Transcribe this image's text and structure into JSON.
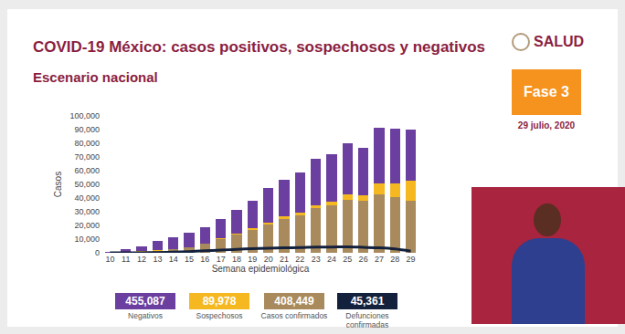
{
  "header": {
    "title": "COVID-19 México: casos positivos, sospechosos y negativos",
    "subtitle": "Escenario nacional",
    "logo": "SALUD",
    "phase": "Fase 3",
    "date": "29 julio, 2020"
  },
  "chart_data": {
    "type": "bar",
    "stacked": true,
    "grid": false,
    "x_label": "Semana epidemiológica",
    "y_label": "Casos",
    "categories": [
      "10",
      "11",
      "12",
      "13",
      "14",
      "15",
      "16",
      "17",
      "18",
      "19",
      "20",
      "21",
      "22",
      "23",
      "24",
      "25",
      "26",
      "27",
      "28",
      "29"
    ],
    "ylim": [
      0,
      100000
    ],
    "yticks": [
      0,
      {
        "value": 10000,
        "label": "10,000"
      },
      {
        "value": 20000,
        "label": "20,000"
      },
      {
        "value": 30000,
        "label": "30,000"
      },
      {
        "value": 40000,
        "label": "40,000"
      },
      {
        "value": 50000,
        "label": "50,000"
      },
      {
        "value": 60000,
        "label": "60,000"
      },
      {
        "value": 70000,
        "label": "70,000"
      },
      {
        "value": 80000,
        "label": "80,000"
      },
      {
        "value": 90000,
        "label": "90,000"
      },
      {
        "value": 100000,
        "label": "100,000"
      }
    ],
    "series": [
      {
        "name": "Negativos",
        "color": "#6b3fa0",
        "type": "bar",
        "total": 455087,
        "total_label": "455,087",
        "values": [
          800,
          2100,
          3800,
          7300,
          8700,
          10200,
          12100,
          14000,
          17400,
          20200,
          25500,
          27000,
          29000,
          33500,
          34500,
          37500,
          35000,
          41000,
          39500,
          37000
        ]
      },
      {
        "name": "Sospechosos",
        "color": "#f5b820",
        "type": "bar",
        "total": 89978,
        "total_label": "89,978",
        "values": [
          100,
          100,
          200,
          200,
          300,
          300,
          400,
          500,
          600,
          800,
          1000,
          1500,
          2000,
          2500,
          3000,
          3500,
          4000,
          7500,
          10000,
          15000
        ]
      },
      {
        "name": "Casos confirmados",
        "color": "#a88a5c",
        "type": "bar",
        "total": 408449,
        "total_label": "408,449",
        "values": [
          100,
          300,
          1000,
          1500,
          2500,
          4000,
          6500,
          10000,
          13500,
          17000,
          21000,
          25000,
          27500,
          32500,
          34500,
          39000,
          38000,
          43000,
          41000,
          38000
        ]
      },
      {
        "name": "Defunciones confirmadas",
        "color": "#14213d",
        "type": "line",
        "line_style": "solid",
        "total": 45361,
        "total_label": "45,361",
        "values": [
          0,
          10,
          50,
          200,
          500,
          900,
          1500,
          2000,
          2500,
          3000,
          3400,
          3600,
          3800,
          4200,
          4200,
          4300,
          4000,
          3600,
          2800,
          1200
        ]
      }
    ]
  }
}
